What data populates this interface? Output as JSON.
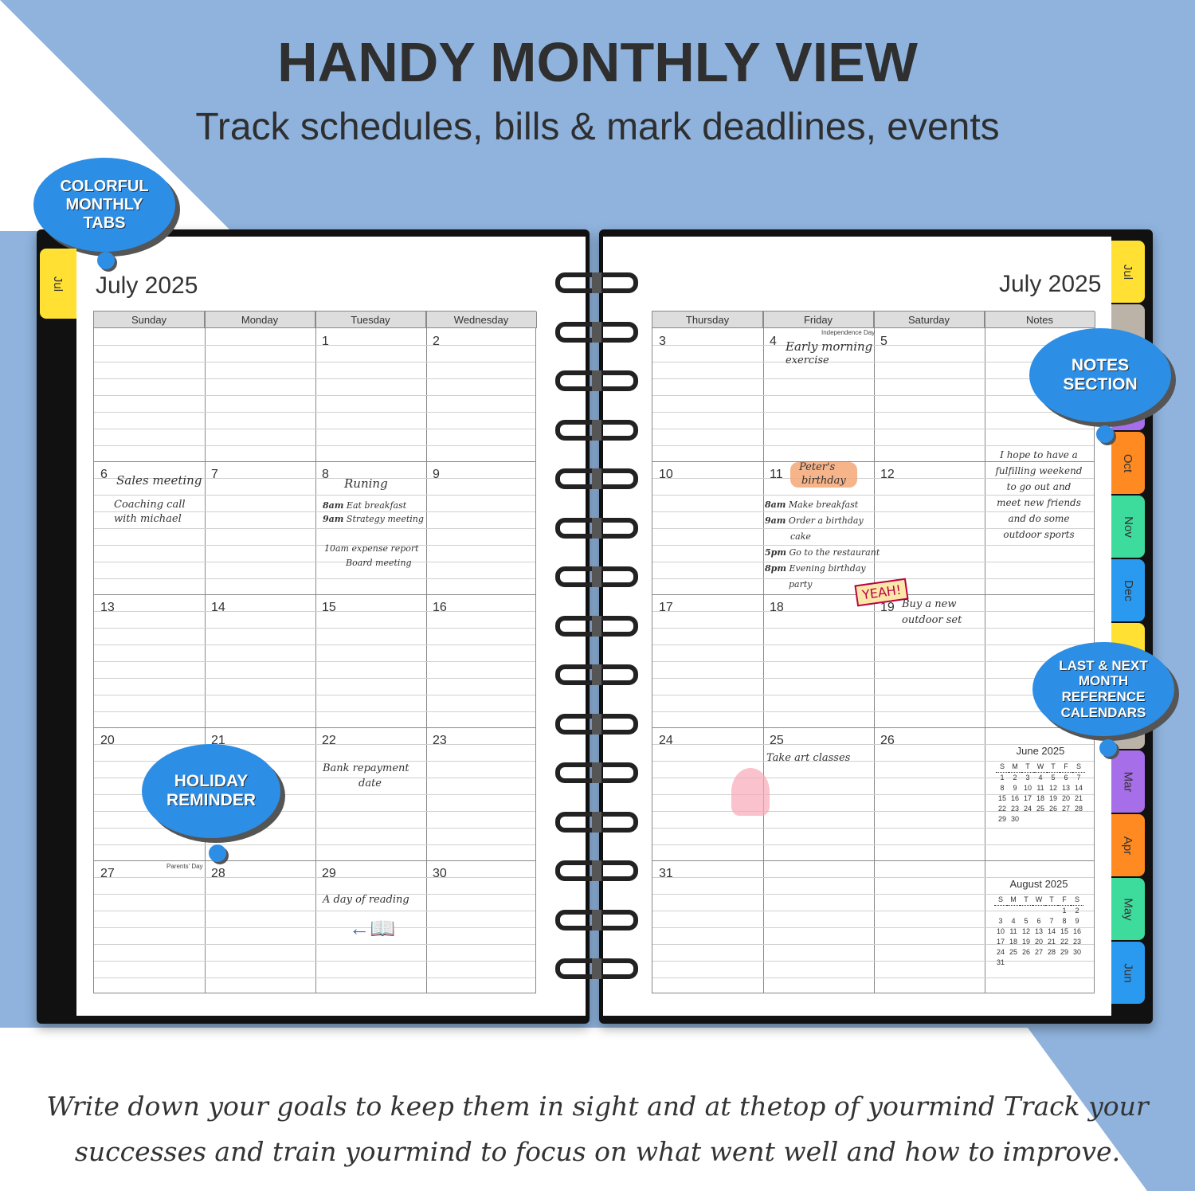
{
  "header": {
    "title": "HANDY MONTHLY VIEW",
    "subtitle": "Track schedules, bills & mark deadlines, events"
  },
  "footer": {
    "line1": "Write down your goals to keep them in sight and at thetop of yourmind Track your",
    "line2": "successes and train yourmind to focus on what went well and how to improve."
  },
  "callouts": {
    "tabs": "COLORFUL MONTHLY TABS",
    "notes": "NOTES SECTION",
    "reference": "LAST & NEXT MONTH REFERENCE CALENDARS",
    "holiday": "HOLIDAY REMINDER"
  },
  "left_page": {
    "month": "July 2025",
    "tab": "Jul",
    "columns": [
      "Sunday",
      "Monday",
      "Tuesday",
      "Wednesday"
    ],
    "weeks": [
      [
        "",
        "",
        "1",
        "2"
      ],
      [
        "6",
        "7",
        "8",
        "9"
      ],
      [
        "13",
        "14",
        "15",
        "16"
      ],
      [
        "20",
        "21",
        "22",
        "23"
      ],
      [
        "27",
        "28",
        "29",
        "30"
      ]
    ],
    "holidays": {
      "parents_day": "Parents' Day"
    },
    "notes": {
      "sales": "Sales meeting",
      "coaching1": "Coaching call",
      "coaching2": "with michael",
      "running": "Runing",
      "t8am": "8am",
      "t8am_text": "Eat breakfast",
      "t9am": "9am",
      "t9am_text": "Strategy meeting",
      "t10am": "10am expense report",
      "board": "Board meeting",
      "bank1": "Bank repayment",
      "bank2": "date",
      "reading": "A day of reading"
    }
  },
  "right_page": {
    "month": "July 2025",
    "columns": [
      "Thursday",
      "Friday",
      "Saturday",
      "Notes"
    ],
    "weeks": [
      [
        "3",
        "4",
        "5"
      ],
      [
        "10",
        "11",
        "12"
      ],
      [
        "17",
        "18",
        "19"
      ],
      [
        "24",
        "25",
        "26"
      ],
      [
        "31",
        "",
        ""
      ]
    ],
    "holidays": {
      "independence_day": "Independence Day"
    },
    "notes": {
      "early1": "Early morning",
      "early2": "exercise",
      "peter1": "Peter's",
      "peter2": "birthday",
      "a8": "8am",
      "a8t": "Make breakfast",
      "a9": "9am",
      "a9t": "Order a birthday",
      "cake": "cake",
      "a5": "5pm",
      "a5t": "Go to the restaurant",
      "a8p": "8pm",
      "a8pt": "Evening birthday",
      "party": "party",
      "yeah": "YEAH!",
      "buy1": "Buy a new",
      "buy2": "outdoor set",
      "art": "Take art classes"
    },
    "notes_column": [
      "I hope to have a",
      "fulfilling weekend",
      "to go out and",
      "meet new friends",
      "and do some",
      "outdoor sports"
    ],
    "mini_calendars": [
      {
        "title": "June 2025",
        "days": [
          "S",
          "M",
          "T",
          "W",
          "T",
          "F",
          "S"
        ],
        "weeks": [
          [
            "1",
            "2",
            "3",
            "4",
            "5",
            "6",
            "7"
          ],
          [
            "8",
            "9",
            "10",
            "11",
            "12",
            "13",
            "14"
          ],
          [
            "15",
            "16",
            "17",
            "18",
            "19",
            "20",
            "21"
          ],
          [
            "22",
            "23",
            "24",
            "25",
            "26",
            "27",
            "28"
          ],
          [
            "29",
            "30",
            "",
            "",
            "",
            "",
            ""
          ]
        ]
      },
      {
        "title": "August 2025",
        "days": [
          "S",
          "M",
          "T",
          "W",
          "T",
          "F",
          "S"
        ],
        "weeks": [
          [
            "",
            "",
            "",
            "",
            "",
            "1",
            "2"
          ],
          [
            "3",
            "4",
            "5",
            "6",
            "7",
            "8",
            "9"
          ],
          [
            "10",
            "11",
            "12",
            "13",
            "14",
            "15",
            "16"
          ],
          [
            "17",
            "18",
            "19",
            "20",
            "21",
            "22",
            "23"
          ],
          [
            "24",
            "25",
            "26",
            "27",
            "28",
            "29",
            "30"
          ],
          [
            "31",
            "",
            "",
            "",
            "",
            "",
            ""
          ]
        ]
      }
    ]
  },
  "tabs": [
    {
      "label": "Jul",
      "color": "#ffe033"
    },
    {
      "label": "",
      "color": "#bbb2a8"
    },
    {
      "label": "",
      "color": "#a66ee8"
    },
    {
      "label": "Oct",
      "color": "#ff8a22"
    },
    {
      "label": "Nov",
      "color": "#3ddc9c"
    },
    {
      "label": "Dec",
      "color": "#2a9af0"
    },
    {
      "label": "",
      "color": "#ffe033"
    },
    {
      "label": "",
      "color": "#bbb2a8"
    },
    {
      "label": "Mar",
      "color": "#a66ee8"
    },
    {
      "label": "Apr",
      "color": "#ff8a22"
    },
    {
      "label": "May",
      "color": "#3ddc9c"
    },
    {
      "label": "Jun",
      "color": "#2a9af0"
    }
  ],
  "colors": {
    "background": "#8fb3dd",
    "callout": "#2d8ee6"
  }
}
